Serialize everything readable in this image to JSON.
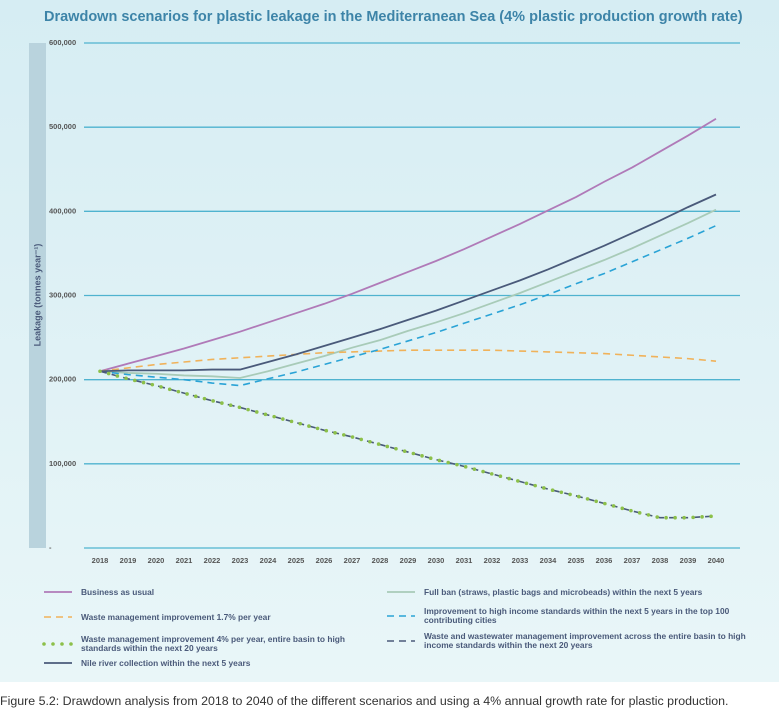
{
  "chart_data": {
    "type": "line",
    "title": "Drawdown scenarios for plastic leakage in the Mediterranean Sea (4% plastic production growth rate)",
    "y_label": "Leakage (tonnes year⁻¹)",
    "caption": "Figure 5.2: Drawdown analysis from 2018 to 2040 of the different scenarios and using a 4% annual growth rate for plastic production.",
    "x": [
      2018,
      2019,
      2020,
      2021,
      2022,
      2023,
      2024,
      2025,
      2026,
      2027,
      2028,
      2029,
      2030,
      2031,
      2032,
      2033,
      2034,
      2035,
      2036,
      2037,
      2038,
      2039,
      2040
    ],
    "xlim": [
      2018,
      2040
    ],
    "xticks": [
      2018,
      2019,
      2020,
      2021,
      2022,
      2023,
      2024,
      2025,
      2026,
      2027,
      2028,
      2029,
      2030,
      2031,
      2032,
      2033,
      2034,
      2035,
      2036,
      2037,
      2038,
      2039,
      2040
    ],
    "ylim": [
      0,
      600000
    ],
    "yticks": [
      {
        "value": 0,
        "label": "-"
      },
      {
        "value": 100000,
        "label": "100,000"
      },
      {
        "value": 200000,
        "label": "200,000"
      },
      {
        "value": 300000,
        "label": "300,000"
      },
      {
        "value": 400000,
        "label": "400,000"
      },
      {
        "value": 500000,
        "label": "500,000"
      },
      {
        "value": 600000,
        "label": "600,000"
      }
    ],
    "grid": true,
    "series": [
      {
        "name": "Business as usual",
        "color": "#b07ab8",
        "linestyle": "solid",
        "values": [
          210000,
          219000,
          228000,
          237000,
          247000,
          257000,
          268000,
          279000,
          290000,
          302000,
          315000,
          328000,
          341000,
          355000,
          370000,
          385000,
          401000,
          417000,
          435000,
          452000,
          471000,
          490000,
          510000
        ]
      },
      {
        "name": "Full ban (straws, plastic bags and microbeads) within the next 5 years",
        "color": "#a8cbb8",
        "linestyle": "solid",
        "values": [
          210000,
          208000,
          207000,
          205000,
          204000,
          202000,
          210000,
          219000,
          228000,
          238000,
          247000,
          258000,
          268000,
          279000,
          291000,
          303000,
          316000,
          329000,
          342000,
          356000,
          371000,
          386000,
          402000
        ]
      },
      {
        "name": "Waste management improvement 1.7% per year",
        "color": "#f0b25a",
        "linestyle": "dashed",
        "values": [
          210000,
          214000,
          218000,
          221000,
          224000,
          226000,
          228000,
          230000,
          232000,
          233000,
          234000,
          235000,
          235000,
          235000,
          235000,
          234000,
          233000,
          232000,
          231000,
          229000,
          227000,
          225000,
          222000
        ]
      },
      {
        "name": "Improvement to high income standards within the next 5 years in the top 100 contributing cities",
        "color": "#2aa3d6",
        "linestyle": "dashed",
        "values": [
          210000,
          206000,
          203000,
          200000,
          196000,
          193000,
          201000,
          209000,
          218000,
          227000,
          236000,
          246000,
          256000,
          267000,
          278000,
          289000,
          301000,
          314000,
          326000,
          340000,
          354000,
          368000,
          383000
        ]
      },
      {
        "name": "Waste management improvement 4% per year, entire basin to high standards within the next 20 years",
        "color": "#8cc04a",
        "linestyle": "dotted",
        "values": [
          210000,
          201000,
          193000,
          184000,
          175000,
          167000,
          158000,
          149000,
          140000,
          132000,
          123000,
          114000,
          105000,
          97000,
          88000,
          79000,
          70000,
          62000,
          53000,
          44000,
          36000,
          36000,
          38000
        ]
      },
      {
        "name": "Waste and wastewater management improvement across the entire basin to high income standards within the next 20 years",
        "color": "#4a5a7a",
        "linestyle": "dashed",
        "values": [
          210000,
          201000,
          193000,
          184000,
          175000,
          167000,
          158000,
          149000,
          140000,
          132000,
          123000,
          114000,
          105000,
          97000,
          88000,
          79000,
          70000,
          62000,
          53000,
          44000,
          36000,
          36000,
          38000
        ]
      },
      {
        "name": "Nile river collection within the next 5 years",
        "color": "#4a5a7a",
        "linestyle": "solid",
        "values": [
          210000,
          211000,
          211000,
          211000,
          212000,
          212000,
          221000,
          230000,
          240000,
          250000,
          260000,
          271000,
          282000,
          294000,
          306000,
          318000,
          331000,
          345000,
          359000,
          374000,
          389000,
          405000,
          420000
        ]
      }
    ]
  }
}
